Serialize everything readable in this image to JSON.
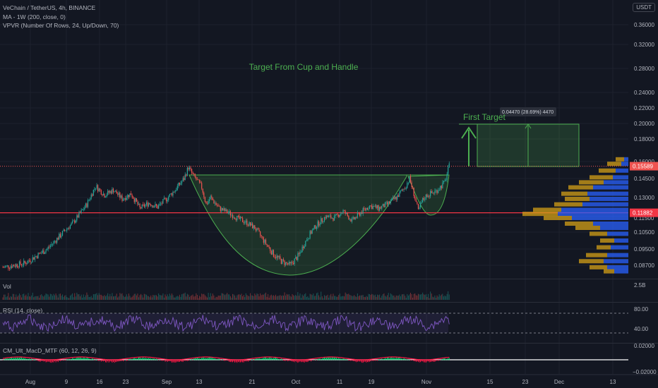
{
  "header": {
    "symbol_line": "VeChain / TetherUS, 4h, BINANCE",
    "indicator_1": "MA - 1W (200, close, 0)",
    "indicator_2": "VPVR (Number Of Rows, 24, Up/Down, 70)",
    "currency_button": "USDT"
  },
  "annotations": {
    "cup_title": "Target From Cup and Handle",
    "target_label": "First Target",
    "measure_label": "0.04470 (28.69%) 4470"
  },
  "colors": {
    "background": "#131722",
    "grid": "#1e222d",
    "up": "#26a69a",
    "down": "#ef5350",
    "green_text": "#4caf50",
    "support_line": "#f23645",
    "vp_up": "#2962ff",
    "vp_down": "#d4a017",
    "rsi_line": "#7e57c2"
  },
  "panes": {
    "volume_label": "Vol",
    "volume_scale": "2.5B",
    "rsi_label": "RSI (14, close)",
    "rsi_levels": [
      "80.00",
      "40.00"
    ],
    "macd_label": "CM_Ult_MacD_MTF (60, 12, 26, 9)",
    "macd_levels": [
      "0.02000",
      "−0.02000"
    ]
  },
  "chart_data": {
    "type": "candlestick",
    "title": "VeChain / TetherUS, 4h, BINANCE",
    "y_ticks": [
      "0.36000",
      "0.32000",
      "0.28000",
      "0.24000",
      "0.22000",
      "0.20000",
      "0.18000",
      "0.16000",
      "0.14500",
      "0.13000",
      "0.11500",
      "0.10500",
      "0.09500",
      "0.08700"
    ],
    "x_ticks": [
      "Aug",
      "9",
      "16",
      "23",
      "Sep",
      "13",
      "21",
      "Oct",
      "11",
      "19",
      "Nov",
      "15",
      "23",
      "Dec",
      "13"
    ],
    "current_price": "0.15589",
    "support_price": "0.11882",
    "price_path": [
      [
        0,
        0.086
      ],
      [
        5,
        0.088
      ],
      [
        10,
        0.095
      ],
      [
        13,
        0.103
      ],
      [
        16,
        0.112
      ],
      [
        19,
        0.125
      ],
      [
        21,
        0.139
      ],
      [
        23,
        0.132
      ],
      [
        25,
        0.136
      ],
      [
        27,
        0.129
      ],
      [
        29,
        0.133
      ],
      [
        31,
        0.122
      ],
      [
        33,
        0.126
      ],
      [
        35,
        0.123
      ],
      [
        37,
        0.129
      ],
      [
        39,
        0.136
      ],
      [
        41,
        0.145
      ],
      [
        42,
        0.155
      ],
      [
        43,
        0.148
      ],
      [
        45,
        0.138
      ],
      [
        46,
        0.125
      ],
      [
        47,
        0.13
      ],
      [
        49,
        0.122
      ],
      [
        51,
        0.119
      ],
      [
        53,
        0.115
      ],
      [
        55,
        0.112
      ],
      [
        57,
        0.108
      ],
      [
        59,
        0.1
      ],
      [
        61,
        0.093
      ],
      [
        63,
        0.089
      ],
      [
        65,
        0.087
      ],
      [
        67,
        0.092
      ],
      [
        69,
        0.102
      ],
      [
        71,
        0.11
      ],
      [
        73,
        0.116
      ],
      [
        75,
        0.115
      ],
      [
        77,
        0.12
      ],
      [
        79,
        0.113
      ],
      [
        81,
        0.119
      ],
      [
        83,
        0.124
      ],
      [
        85,
        0.122
      ],
      [
        87,
        0.125
      ],
      [
        89,
        0.13
      ],
      [
        91,
        0.138
      ],
      [
        92,
        0.145
      ],
      [
        93,
        0.133
      ],
      [
        94,
        0.12
      ],
      [
        95,
        0.128
      ],
      [
        96,
        0.132
      ],
      [
        98,
        0.135
      ],
      [
        100,
        0.142
      ],
      [
        101,
        0.1559
      ]
    ],
    "ylim": [
      0.08,
      0.4
    ]
  }
}
